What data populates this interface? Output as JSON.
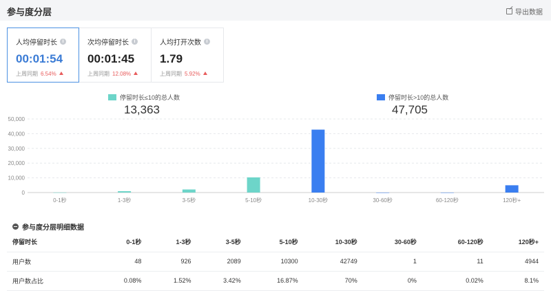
{
  "header": {
    "title": "参与度分层",
    "export_label": "导出数据"
  },
  "metrics": [
    {
      "label": "人均停留时长",
      "value": "00:01:54",
      "compare_label": "上周同期",
      "compare_value": "6.54%"
    },
    {
      "label": "次均停留时长",
      "value": "00:01:45",
      "compare_label": "上周同期",
      "compare_value": "12.08%"
    },
    {
      "label": "人均打开次数",
      "value": "1.79",
      "compare_label": "上周同期",
      "compare_value": "5.92%"
    }
  ],
  "legend": [
    {
      "label": "停留时长≤10的总人数",
      "total": "13,363",
      "color": "#6dd5c9"
    },
    {
      "label": "停留时长>10的总人数",
      "total": "47,705",
      "color": "#3a7ef0"
    }
  ],
  "chart_data": {
    "type": "bar",
    "categories": [
      "0-1秒",
      "1-3秒",
      "3-5秒",
      "5-10秒",
      "10-30秒",
      "30-60秒",
      "60-120秒",
      "120秒+"
    ],
    "series": [
      {
        "name": "停留时长≤10的总人数",
        "values": [
          48,
          926,
          2089,
          10300,
          null,
          null,
          null,
          null
        ],
        "color": "#6dd5c9"
      },
      {
        "name": "停留时长>10的总人数",
        "values": [
          null,
          null,
          null,
          null,
          42749,
          1,
          11,
          4944
        ],
        "color": "#3a7ef0"
      }
    ],
    "yticks": [
      "0",
      "10,000",
      "20,000",
      "30,000",
      "40,000",
      "50,000"
    ],
    "ylim": [
      0,
      50000
    ],
    "grid": true
  },
  "table": {
    "section_title": "参与度分层明细数据",
    "headers": [
      "停留时长",
      "0-1秒",
      "1-3秒",
      "3-5秒",
      "5-10秒",
      "10-30秒",
      "30-60秒",
      "60-120秒",
      "120秒+"
    ],
    "rows": [
      [
        "用户数",
        "48",
        "926",
        "2089",
        "10300",
        "42749",
        "1",
        "11",
        "4944"
      ],
      [
        "用户数占比",
        "0.08%",
        "1.52%",
        "3.42%",
        "16.87%",
        "70%",
        "0%",
        "0.02%",
        "8.1%"
      ]
    ]
  }
}
